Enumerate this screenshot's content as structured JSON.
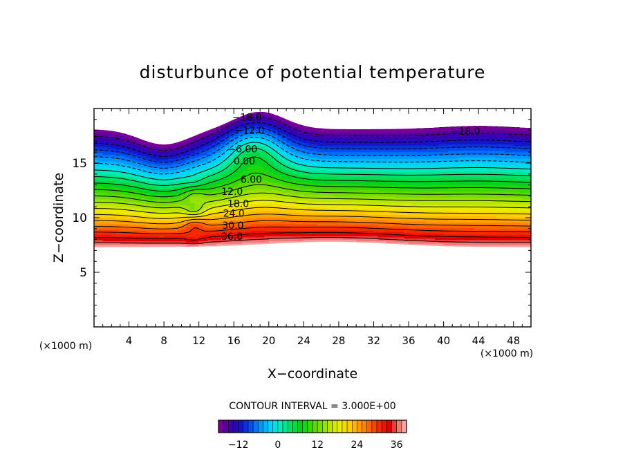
{
  "chart_data": {
    "type": "heatmap",
    "title": "disturbunce of potential temperature",
    "xlabel": "X−coordinate",
    "ylabel": "Z−coordinate",
    "x_unit_left": "(×1000 m)",
    "x_unit_right": "(×1000 m)",
    "xlim": [
      0,
      50
    ],
    "ylim": [
      0,
      20
    ],
    "x_ticks": [
      "4",
      "8",
      "12",
      "16",
      "20",
      "24",
      "28",
      "32",
      "36",
      "40",
      "44",
      "48"
    ],
    "y_ticks": [
      "5",
      "10",
      "15"
    ],
    "contour_interval_text": "CONTOUR INTERVAL = 3.000E+00",
    "contour_interval": 3.0,
    "contour_labels": [
      {
        "text": "−18.0",
        "x": 17.5,
        "z": 19.2
      },
      {
        "text": "−12.0",
        "x": 17.8,
        "z": 18.0
      },
      {
        "text": "−6.00",
        "x": 17.0,
        "z": 16.3
      },
      {
        "text": "0.00",
        "x": 17.2,
        "z": 15.2
      },
      {
        "text": "6.00",
        "x": 18.0,
        "z": 13.5
      },
      {
        "text": "12.0",
        "x": 15.8,
        "z": 12.4
      },
      {
        "text": "18.0",
        "x": 16.5,
        "z": 11.3
      },
      {
        "text": "24.0",
        "x": 16.0,
        "z": 10.4
      },
      {
        "text": "30.0",
        "x": 15.9,
        "z": 9.3
      },
      {
        "text": "36.0",
        "x": 15.8,
        "z": 8.3
      },
      {
        "text": "−18.0",
        "x": 42.5,
        "z": 17.9
      }
    ],
    "colorbar": {
      "min": -18,
      "max": 39,
      "ticks": [
        "−12",
        "0",
        "12",
        "24",
        "36"
      ]
    }
  }
}
